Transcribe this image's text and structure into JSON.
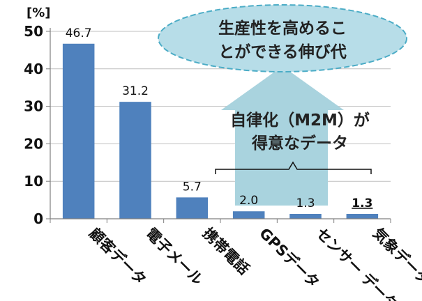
{
  "chart_data": {
    "type": "bar",
    "ylabel": "[%]",
    "ylim": [
      0,
      50
    ],
    "yticks": [
      0,
      10,
      20,
      30,
      40,
      50
    ],
    "grid": true,
    "categories": [
      "顧客データ",
      "電子メール",
      "携帯電話",
      "GPSデータ",
      "センサー データ",
      "気象データ"
    ],
    "values": [
      46.7,
      31.2,
      5.7,
      2.0,
      1.3,
      1.3
    ],
    "value_labels": [
      "46.7",
      "31.2",
      "5.7",
      "2.0",
      "1.3",
      "1.3"
    ],
    "bar_color": "#4F81BD",
    "highlight_index": 5,
    "highlight_color": "#E8202A"
  },
  "annotations": {
    "cloud_lines": [
      "生産性を高めるこ",
      "とができる伸び代"
    ],
    "arrow_lines": [
      "自律化（M2M）が",
      "得意なデータ"
    ],
    "cloud_color": "#B7DDE8",
    "cloud_border": "#4BACC6",
    "arrow_color": "#A9D3DE"
  }
}
